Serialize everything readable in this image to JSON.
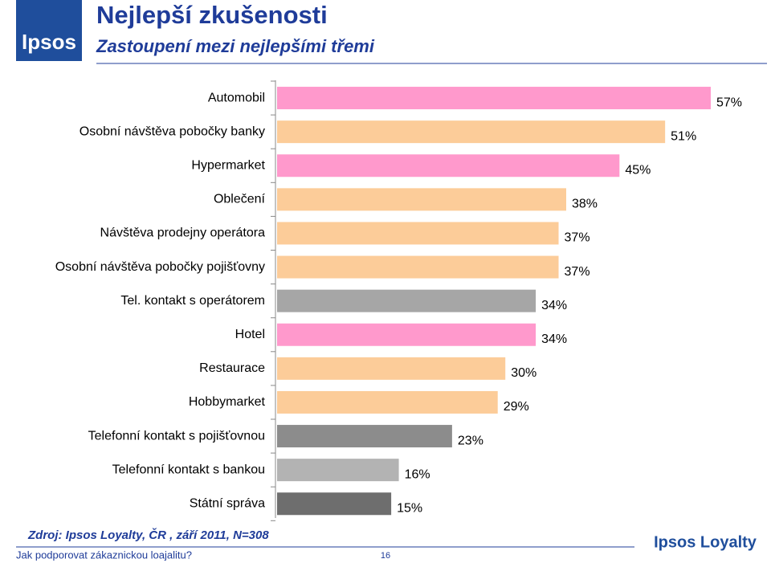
{
  "logo": "Ipsos",
  "chart_data": {
    "type": "bar",
    "orientation": "horizontal",
    "title": "Nejlepší zkušenosti",
    "subtitle": "Zastoupení mezi nejlepšími třemi",
    "categories": [
      "Automobil",
      "Osobní návštěva pobočky banky",
      "Hypermarket",
      "Oblečení",
      "Návštěva prodejny operátora",
      "Osobní návštěva pobočky pojišťovny",
      "Tel. kontakt s operátorem",
      "Hotel",
      "Restaurace",
      "Hobbymarket",
      "Telefonní kontakt s pojišťovnou",
      "Telefonní kontakt s bankou",
      "Státní správa"
    ],
    "values": [
      57,
      51,
      45,
      38,
      37,
      37,
      34,
      34,
      30,
      29,
      23,
      16,
      15
    ],
    "value_labels": [
      "57%",
      "51%",
      "45%",
      "38%",
      "37%",
      "37%",
      "34%",
      "34%",
      "30%",
      "29%",
      "23%",
      "16%",
      "15%"
    ],
    "colors": [
      "#ff99cc",
      "#fccc99",
      "#ff99cc",
      "#fccc99",
      "#fccc99",
      "#fccc99",
      "#a6a6a6",
      "#ff99cc",
      "#fccc99",
      "#fccc99",
      "#8c8c8c",
      "#b3b3b3",
      "#6e6e6e"
    ]
  },
  "source": "Zdroj: Ipsos Loyalty, ČR , září 2011, N=308",
  "footer": "Jak podporovat zákaznickou loajalitu?",
  "page_number": "16",
  "brand": "Ipsos Loyalty"
}
